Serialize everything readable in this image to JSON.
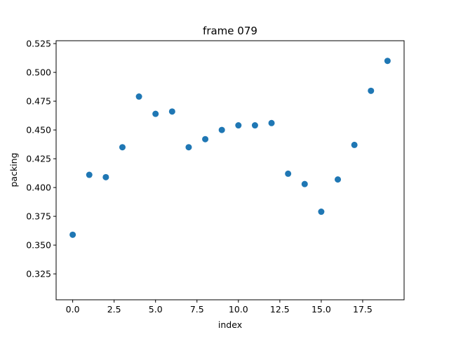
{
  "chart_data": {
    "type": "scatter",
    "title": "frame 079",
    "xlabel": "index",
    "ylabel": "packing",
    "xlim": [
      -1.0,
      20.0
    ],
    "ylim": [
      0.3025,
      0.5275
    ],
    "xticks": [
      0.0,
      2.5,
      5.0,
      7.5,
      10.0,
      12.5,
      15.0,
      17.5
    ],
    "xtick_labels": [
      "0.0",
      "2.5",
      "5.0",
      "7.5",
      "10.0",
      "12.5",
      "15.0",
      "17.5"
    ],
    "yticks": [
      0.325,
      0.35,
      0.375,
      0.4,
      0.425,
      0.45,
      0.475,
      0.5,
      0.525
    ],
    "ytick_labels": [
      "0.325",
      "0.350",
      "0.375",
      "0.400",
      "0.425",
      "0.450",
      "0.475",
      "0.500",
      "0.525"
    ],
    "grid": false,
    "marker_color": "#1f77b4",
    "series": [
      {
        "x": [
          0,
          1,
          2,
          3,
          4,
          5,
          6,
          7,
          8,
          9,
          10,
          11,
          12,
          13,
          14,
          15,
          16,
          17,
          18,
          19
        ],
        "y": [
          0.359,
          0.411,
          0.409,
          0.435,
          0.479,
          0.464,
          0.466,
          0.435,
          0.442,
          0.45,
          0.454,
          0.454,
          0.456,
          0.412,
          0.403,
          0.379,
          0.407,
          0.437,
          0.484,
          0.51
        ]
      }
    ]
  }
}
